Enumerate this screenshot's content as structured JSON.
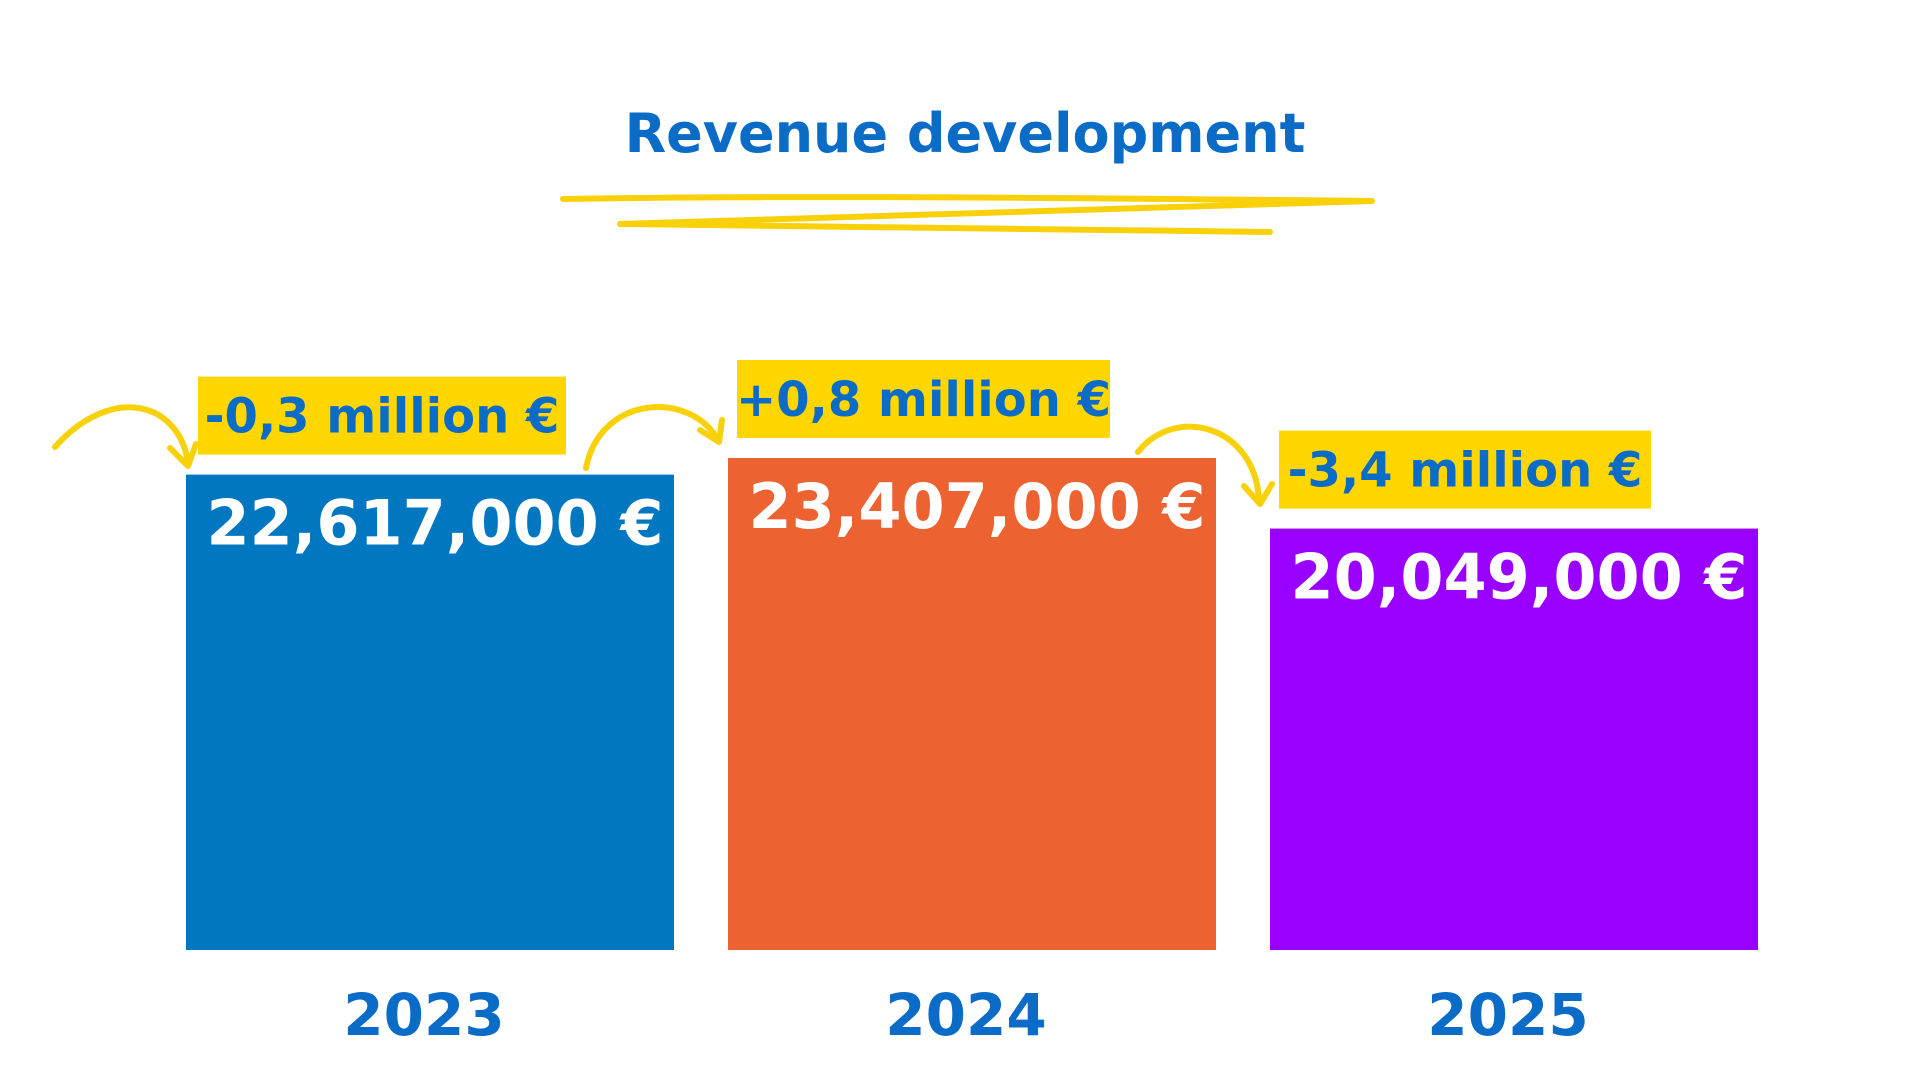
{
  "chart_data": {
    "type": "bar",
    "title": "Revenue development",
    "categories": [
      "2023",
      "2024",
      "2025"
    ],
    "values": [
      22617000,
      23407000,
      20049000
    ],
    "value_labels": [
      "22,617,000 €",
      "23,407,000 €",
      "20,049,000 €"
    ],
    "bar_colors": [
      "#0077C0",
      "#EC6331",
      "#9900FF"
    ],
    "annotations": [
      {
        "text": "-0,3 million €",
        "category": "2023"
      },
      {
        "text": "+0,8 million €",
        "category": "2024"
      },
      {
        "text": "-3,4 million €",
        "category": "2025"
      }
    ],
    "xlabel": "",
    "ylabel": "",
    "grid": false,
    "legend": "none"
  },
  "colors": {
    "text_blue": "#0A6CC6",
    "highlight_yellow": "#FFD600",
    "arrow_yellow": "#F8D10A",
    "label_white": "#FFFFFF",
    "background": "#FFFFFF"
  }
}
